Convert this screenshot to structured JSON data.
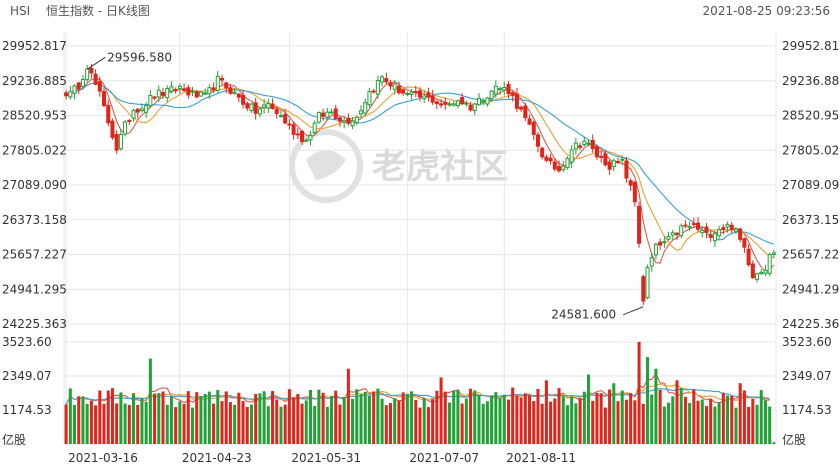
{
  "header": {
    "symbol": "HSI",
    "title": "恒生指数 - 日K线图",
    "timestamp": "2021-08-25 09:23:56"
  },
  "watermark": "老虎社区",
  "colors": {
    "up": "#21a236",
    "down": "#e1251b",
    "ma5": "#e05a4e",
    "ma10": "#f0a030",
    "ma20": "#3aa0d8",
    "grid": "#e6e6e6",
    "text": "#333333"
  },
  "chart_data": {
    "type": "candlestick",
    "price_axis": {
      "ticks": [
        "29952.817",
        "29236.885",
        "28520.953",
        "27805.022",
        "27089.090",
        "26373.158",
        "25657.227",
        "24941.295",
        "24225.363"
      ],
      "min": 24225.363,
      "max": 29952.817
    },
    "volume_axis": {
      "ticks": [
        "3523.60",
        "2349.07",
        "1174.53"
      ],
      "unit_label": "亿股",
      "max": 3523.6
    },
    "x_axis": {
      "tick_labels": [
        "2021-03-16",
        "2021-04-23",
        "2021-05-31",
        "2021-07-07",
        "2021-08-11"
      ]
    },
    "annotations": {
      "high_label": "29596.580",
      "low_label": "24581.600"
    },
    "price_anchors": [
      [
        0,
        29000
      ],
      [
        1,
        28950
      ],
      [
        3,
        29150
      ],
      [
        5,
        29550
      ],
      [
        8,
        28950
      ],
      [
        10,
        28400
      ],
      [
        12,
        27850
      ],
      [
        14,
        28300
      ],
      [
        16,
        28650
      ],
      [
        18,
        28700
      ],
      [
        21,
        28950
      ],
      [
        24,
        29000
      ],
      [
        27,
        29100
      ],
      [
        30,
        28950
      ],
      [
        33,
        28900
      ],
      [
        36,
        29250
      ],
      [
        39,
        29050
      ],
      [
        42,
        28800
      ],
      [
        45,
        28600
      ],
      [
        48,
        28750
      ],
      [
        51,
        28500
      ],
      [
        54,
        28200
      ],
      [
        57,
        28000
      ],
      [
        60,
        28500
      ],
      [
        63,
        28600
      ],
      [
        66,
        28400
      ],
      [
        69,
        28500
      ],
      [
        72,
        29000
      ],
      [
        75,
        29300
      ],
      [
        78,
        29100
      ],
      [
        81,
        28950
      ],
      [
        84,
        28900
      ],
      [
        87,
        28850
      ],
      [
        90,
        28700
      ],
      [
        93,
        28850
      ],
      [
        96,
        28700
      ],
      [
        99,
        28900
      ],
      [
        102,
        29100
      ],
      [
        105,
        29050
      ],
      [
        108,
        28600
      ],
      [
        111,
        28100
      ],
      [
        114,
        27550
      ],
      [
        117,
        27400
      ],
      [
        120,
        27850
      ],
      [
        123,
        28000
      ],
      [
        126,
        27700
      ],
      [
        129,
        27500
      ],
      [
        132,
        27550
      ],
      [
        135,
        26750
      ],
      [
        137,
        25100
      ],
      [
        140,
        25800
      ],
      [
        143,
        25950
      ],
      [
        146,
        26200
      ],
      [
        149,
        26250
      ],
      [
        152,
        26050
      ],
      [
        155,
        26200
      ],
      [
        158,
        26250
      ],
      [
        161,
        25800
      ],
      [
        163,
        25250
      ],
      [
        166,
        25400
      ],
      [
        167,
        25700
      ],
      [
        168,
        25650
      ]
    ],
    "volume_spikes": [
      [
        20,
        2950
      ],
      [
        67,
        2600
      ],
      [
        89,
        2300
      ],
      [
        106,
        1950
      ],
      [
        114,
        2200
      ],
      [
        124,
        2400
      ],
      [
        130,
        2100
      ],
      [
        136,
        3523.6
      ],
      [
        138,
        3000
      ],
      [
        140,
        2600
      ],
      [
        145,
        2200
      ],
      [
        160,
        2100
      ]
    ]
  }
}
